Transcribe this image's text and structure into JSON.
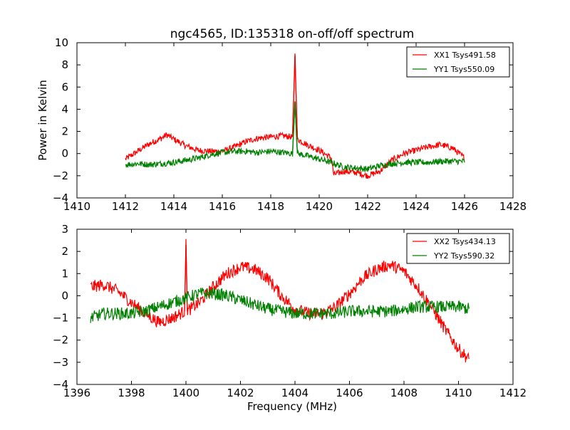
{
  "figure": {
    "title": "ngc4565, ID:135318 on-off/off spectrum",
    "ylabel": "Power in Kelvin",
    "xlabel": "Frequency (MHz)"
  },
  "colors": {
    "xx": "#ff0000",
    "yy": "#008000"
  },
  "chart_data": [
    {
      "type": "line",
      "title": "ngc4565, ID:135318 on-off/off spectrum",
      "xlabel": "",
      "ylabel": "Power in Kelvin",
      "xlim": [
        1410,
        1428
      ],
      "ylim": [
        -4,
        10
      ],
      "xticks": [
        "1410",
        "1412",
        "1414",
        "1416",
        "1418",
        "1420",
        "1422",
        "1424",
        "1426",
        "1428"
      ],
      "yticks": [
        "−4",
        "−2",
        "0",
        "2",
        "4",
        "6",
        "8",
        "10"
      ],
      "legend_position": "top-right",
      "series": [
        {
          "name": "XX1 Tsys491.58",
          "color": "#ff0000",
          "x": [
            1412.0,
            1412.5,
            1413.0,
            1413.5,
            1413.7,
            1414.0,
            1414.5,
            1415.0,
            1415.5,
            1416.0,
            1416.5,
            1417.0,
            1417.5,
            1418.0,
            1418.5,
            1418.9,
            1419.0,
            1419.1,
            1419.5,
            1420.0,
            1420.5,
            1420.6,
            1421.0,
            1421.5,
            1422.0,
            1422.5,
            1423.0,
            1423.5,
            1424.0,
            1424.5,
            1425.0,
            1425.5,
            1426.0
          ],
          "y": [
            -0.5,
            0.2,
            0.9,
            1.4,
            1.7,
            1.3,
            0.7,
            0.3,
            0.2,
            0.2,
            0.6,
            1.1,
            1.4,
            1.5,
            1.6,
            1.5,
            8.9,
            1.3,
            0.8,
            0.3,
            -0.4,
            -1.9,
            -1.6,
            -1.7,
            -2.0,
            -1.6,
            -0.6,
            0.0,
            0.3,
            0.6,
            0.8,
            0.5,
            -0.4
          ]
        },
        {
          "name": "YY1 Tsys550.09",
          "color": "#008000",
          "x": [
            1412.0,
            1412.5,
            1413.0,
            1413.5,
            1414.0,
            1414.5,
            1415.0,
            1415.5,
            1416.0,
            1416.5,
            1417.0,
            1417.5,
            1418.0,
            1418.5,
            1418.9,
            1419.0,
            1419.1,
            1419.5,
            1420.0,
            1420.5,
            1421.0,
            1421.5,
            1422.0,
            1422.5,
            1423.0,
            1423.5,
            1424.0,
            1424.5,
            1425.0,
            1425.5,
            1426.0
          ],
          "y": [
            -1.0,
            -0.9,
            -1.0,
            -0.9,
            -0.8,
            -0.6,
            -0.4,
            -0.1,
            0.1,
            0.2,
            0.2,
            0.1,
            0.2,
            0.1,
            0.0,
            4.7,
            0.0,
            -0.2,
            -0.5,
            -0.8,
            -1.2,
            -1.3,
            -1.4,
            -1.1,
            -0.9,
            -0.8,
            -0.8,
            -0.8,
            -0.7,
            -0.7,
            -0.7
          ]
        }
      ]
    },
    {
      "type": "line",
      "title": "",
      "xlabel": "Frequency (MHz)",
      "ylabel": "",
      "xlim": [
        1396,
        1412
      ],
      "ylim": [
        -4,
        3
      ],
      "xticks": [
        "1396",
        "1398",
        "1400",
        "1402",
        "1404",
        "1406",
        "1408",
        "1410",
        "1412"
      ],
      "yticks": [
        "−4",
        "−3",
        "−2",
        "−1",
        "0",
        "1",
        "2",
        "3"
      ],
      "legend_position": "top-right",
      "series": [
        {
          "name": "XX2 Tsys434.13",
          "color": "#ff0000",
          "x": [
            1396.5,
            1397.0,
            1397.5,
            1398.0,
            1398.5,
            1399.0,
            1399.5,
            1399.95,
            1400.0,
            1400.05,
            1400.5,
            1401.0,
            1401.5,
            1402.0,
            1402.5,
            1403.0,
            1403.5,
            1404.0,
            1404.5,
            1405.0,
            1405.5,
            1406.0,
            1406.5,
            1407.0,
            1407.5,
            1408.0,
            1408.5,
            1409.0,
            1409.5,
            1410.0,
            1410.4
          ],
          "y": [
            0.4,
            0.5,
            0.2,
            -0.3,
            -0.8,
            -1.2,
            -1.0,
            -0.7,
            2.3,
            -0.7,
            -0.3,
            0.4,
            1.0,
            1.3,
            1.2,
            0.8,
            0.0,
            -0.6,
            -0.8,
            -0.8,
            -0.5,
            0.1,
            0.8,
            1.2,
            1.4,
            1.1,
            0.4,
            -0.5,
            -1.5,
            -2.4,
            -2.9
          ]
        },
        {
          "name": "YY2 Tsys590.32",
          "color": "#008000",
          "x": [
            1396.5,
            1397.0,
            1397.5,
            1398.0,
            1398.5,
            1399.0,
            1399.5,
            1400.0,
            1400.5,
            1401.0,
            1401.5,
            1402.0,
            1402.5,
            1403.0,
            1403.5,
            1404.0,
            1404.5,
            1405.0,
            1405.5,
            1406.0,
            1406.5,
            1407.0,
            1407.5,
            1408.0,
            1408.5,
            1409.0,
            1409.5,
            1410.0,
            1410.4
          ],
          "y": [
            -1.0,
            -0.8,
            -0.8,
            -0.8,
            -0.7,
            -0.5,
            -0.3,
            -0.1,
            0.1,
            0.1,
            0.0,
            -0.2,
            -0.4,
            -0.6,
            -0.7,
            -0.8,
            -0.8,
            -0.8,
            -0.8,
            -0.7,
            -0.7,
            -0.7,
            -0.7,
            -0.6,
            -0.5,
            -0.5,
            -0.5,
            -0.5,
            -0.6
          ]
        }
      ]
    }
  ]
}
